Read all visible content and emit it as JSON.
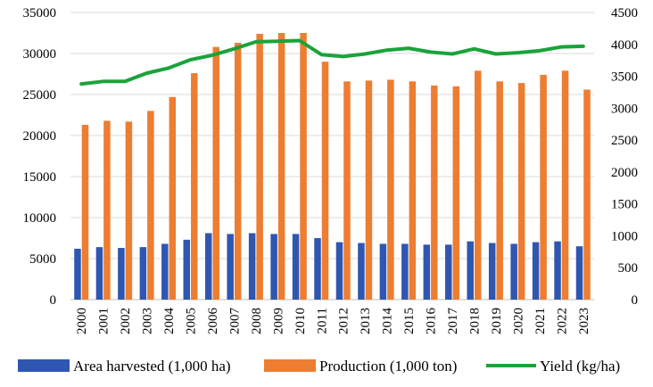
{
  "chart_data": {
    "type": "bar",
    "categories": [
      "2000",
      "2001",
      "2002",
      "2003",
      "2004",
      "2005",
      "2006",
      "2007",
      "2008",
      "2009",
      "2010",
      "2011",
      "2012",
      "2013",
      "2014",
      "2015",
      "2016",
      "2017",
      "2018",
      "2019",
      "2020",
      "2021",
      "2022",
      "2023"
    ],
    "series": [
      {
        "name": "Area harvested (1,000 ha)",
        "kind": "bar",
        "axis": "left",
        "color": "#2f56b0",
        "values": [
          6200,
          6400,
          6300,
          6400,
          6800,
          7300,
          8100,
          8000,
          8100,
          8000,
          8000,
          7500,
          7000,
          6900,
          6800,
          6800,
          6700,
          6700,
          7100,
          6900,
          6800,
          7000,
          7100,
          6500
        ]
      },
      {
        "name": "Production (1,000 ton)",
        "kind": "bar",
        "axis": "left",
        "color": "#ed7d31",
        "values": [
          21300,
          21800,
          21700,
          23000,
          24700,
          27600,
          30800,
          31300,
          32400,
          32500,
          32500,
          29000,
          26600,
          26700,
          26800,
          26600,
          26100,
          26000,
          27900,
          26600,
          26400,
          27400,
          27900,
          25600
        ]
      },
      {
        "name": "Yield (kg/ha)",
        "kind": "line",
        "axis": "right",
        "color": "#1aa33a",
        "values": [
          3380,
          3420,
          3420,
          3550,
          3630,
          3760,
          3830,
          3930,
          4040,
          4050,
          4060,
          3840,
          3810,
          3850,
          3910,
          3940,
          3880,
          3850,
          3930,
          3850,
          3870,
          3900,
          3960,
          3970
        ]
      }
    ],
    "y_left": {
      "ticks": [
        "0",
        "5000",
        "10000",
        "15000",
        "20000",
        "25000",
        "30000",
        "35000"
      ],
      "ylim": [
        0,
        35000
      ]
    },
    "y_right": {
      "ticks": [
        "0",
        "500",
        "1000",
        "1500",
        "2000",
        "2500",
        "3000",
        "3500",
        "4000",
        "4500"
      ],
      "ylim": [
        0,
        4500
      ]
    },
    "grid": true,
    "legend_position": "bottom"
  }
}
